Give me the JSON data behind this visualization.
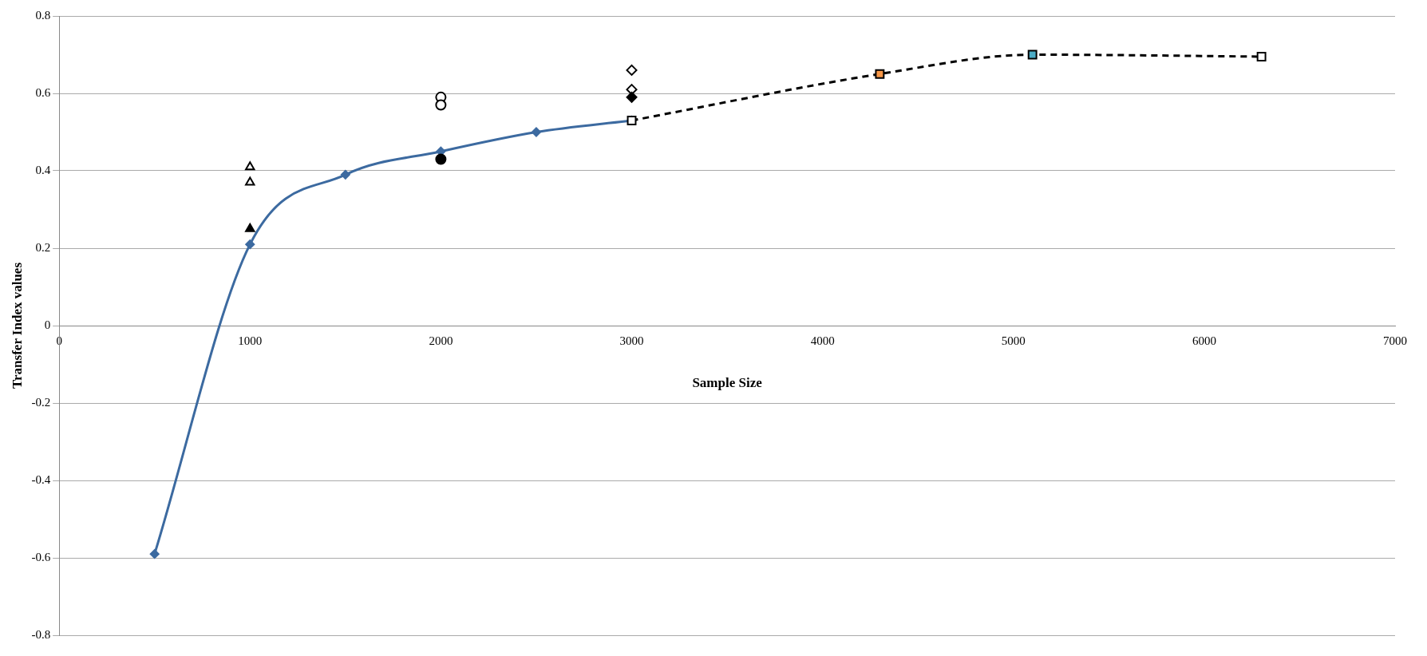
{
  "chart_data": {
    "type": "line",
    "xlabel": "Sample Size",
    "ylabel": "Transfer Index values",
    "xlim": [
      0,
      7000
    ],
    "xticks": [
      0,
      1000,
      2000,
      3000,
      4000,
      5000,
      6000,
      7000
    ],
    "ylim": [
      -0.8,
      0.8
    ],
    "yticks": [
      -0.8,
      -0.6,
      -0.4,
      -0.2,
      0,
      0.2,
      0.4,
      0.6,
      0.8
    ],
    "grid": "y",
    "legend": false,
    "series": [
      {
        "color": "#3c6aa0",
        "marker": "diamond",
        "line_style": "solid",
        "x": [
          500,
          1000,
          1500,
          2000,
          2500,
          3000
        ],
        "values": [
          -0.59,
          0.21,
          0.39,
          0.45,
          0.5,
          0.53
        ]
      },
      {
        "color": "#000000",
        "colors": [
          "#ffffff",
          "#f79646",
          "#4bacc6",
          "#ffffff"
        ],
        "marker": "square",
        "line_style": "dashed",
        "x": [
          3000,
          4300,
          5100,
          6300
        ],
        "values": [
          0.53,
          0.65,
          0.7,
          0.695
        ]
      },
      {
        "type": "scatter",
        "color": "#ffffff",
        "marker": "triangle",
        "x": [
          1000
        ],
        "values": [
          0.41
        ]
      },
      {
        "type": "scatter",
        "color": "#ffffff",
        "marker": "triangle",
        "x": [
          1000
        ],
        "values": [
          0.37
        ]
      },
      {
        "type": "scatter",
        "color": "#000000",
        "marker": "triangle",
        "x": [
          1000
        ],
        "values": [
          0.25
        ]
      },
      {
        "type": "scatter",
        "color": "#ffffff",
        "marker": "circle",
        "x": [
          2000
        ],
        "values": [
          0.59
        ]
      },
      {
        "type": "scatter",
        "color": "#ffffff",
        "marker": "circle",
        "x": [
          2000
        ],
        "values": [
          0.57
        ]
      },
      {
        "type": "scatter",
        "color": "#000000",
        "marker": "circle",
        "x": [
          2000
        ],
        "values": [
          0.43
        ]
      },
      {
        "type": "scatter",
        "color": "#ffffff",
        "marker": "diamond",
        "x": [
          3000
        ],
        "values": [
          0.66
        ]
      },
      {
        "type": "scatter",
        "color": "#ffffff",
        "marker": "diamond",
        "x": [
          3000
        ],
        "values": [
          0.61
        ]
      },
      {
        "type": "scatter",
        "color": "#000000",
        "marker": "diamond",
        "x": [
          3000
        ],
        "values": [
          0.59
        ]
      }
    ]
  }
}
